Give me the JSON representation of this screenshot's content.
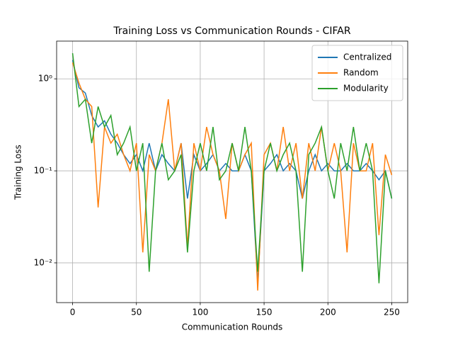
{
  "chart_data": {
    "type": "line",
    "title": "Training Loss vs Communication Rounds - CIFAR",
    "x_label": "Communication Rounds",
    "y_label": "Training Loss",
    "x": [
      0,
      5,
      10,
      15,
      20,
      25,
      30,
      35,
      40,
      45,
      50,
      55,
      60,
      65,
      70,
      75,
      80,
      85,
      90,
      95,
      100,
      105,
      110,
      115,
      120,
      125,
      130,
      135,
      140,
      145,
      150,
      155,
      160,
      165,
      170,
      175,
      180,
      185,
      190,
      195,
      200,
      205,
      210,
      215,
      220,
      225,
      230,
      235,
      240,
      245,
      250
    ],
    "series": [
      {
        "name": "Centralized",
        "color": "#1f77b4",
        "values": [
          1.6,
          0.8,
          0.7,
          0.4,
          0.3,
          0.35,
          0.25,
          0.2,
          0.15,
          0.12,
          0.15,
          0.1,
          0.2,
          0.1,
          0.15,
          0.12,
          0.1,
          0.2,
          0.05,
          0.15,
          0.1,
          0.12,
          0.15,
          0.1,
          0.12,
          0.1,
          0.1,
          0.15,
          0.1,
          0.006,
          0.1,
          0.12,
          0.15,
          0.1,
          0.12,
          0.1,
          0.05,
          0.1,
          0.15,
          0.1,
          0.12,
          0.1,
          0.1,
          0.12,
          0.1,
          0.1,
          0.12,
          0.1,
          0.08,
          0.1,
          0.05
        ]
      },
      {
        "name": "Random",
        "color": "#ff7f0e",
        "values": [
          1.5,
          0.9,
          0.6,
          0.5,
          0.04,
          0.3,
          0.2,
          0.25,
          0.15,
          0.1,
          0.2,
          0.013,
          0.15,
          0.1,
          0.2,
          0.6,
          0.1,
          0.2,
          0.015,
          0.2,
          0.1,
          0.3,
          0.15,
          0.1,
          0.03,
          0.2,
          0.1,
          0.15,
          0.2,
          0.005,
          0.15,
          0.2,
          0.1,
          0.3,
          0.1,
          0.2,
          0.05,
          0.2,
          0.1,
          0.3,
          0.1,
          0.2,
          0.1,
          0.013,
          0.2,
          0.1,
          0.1,
          0.2,
          0.02,
          0.15,
          0.09
        ]
      },
      {
        "name": "Modularity",
        "color": "#2ca02c",
        "values": [
          1.9,
          0.5,
          0.6,
          0.2,
          0.5,
          0.3,
          0.4,
          0.15,
          0.2,
          0.3,
          0.1,
          0.2,
          0.008,
          0.1,
          0.2,
          0.08,
          0.1,
          0.15,
          0.013,
          0.1,
          0.2,
          0.1,
          0.3,
          0.08,
          0.1,
          0.2,
          0.1,
          0.3,
          0.1,
          0.008,
          0.1,
          0.2,
          0.1,
          0.15,
          0.2,
          0.1,
          0.008,
          0.15,
          0.2,
          0.3,
          0.1,
          0.05,
          0.2,
          0.1,
          0.3,
          0.1,
          0.2,
          0.1,
          0.006,
          0.1,
          0.05
        ]
      }
    ],
    "xlim": [
      -12.5,
      262.5
    ],
    "xticks": [
      0,
      50,
      100,
      150,
      200,
      250
    ],
    "ylim": [
      0.0037,
      2.57
    ],
    "yscale": "log",
    "yticks": [
      {
        "value": 0.01,
        "label": "10⁻²"
      },
      {
        "value": 0.1,
        "label": "10⁻¹"
      },
      {
        "value": 1,
        "label": "10⁰"
      }
    ],
    "grid": true,
    "legend": "upper right"
  }
}
